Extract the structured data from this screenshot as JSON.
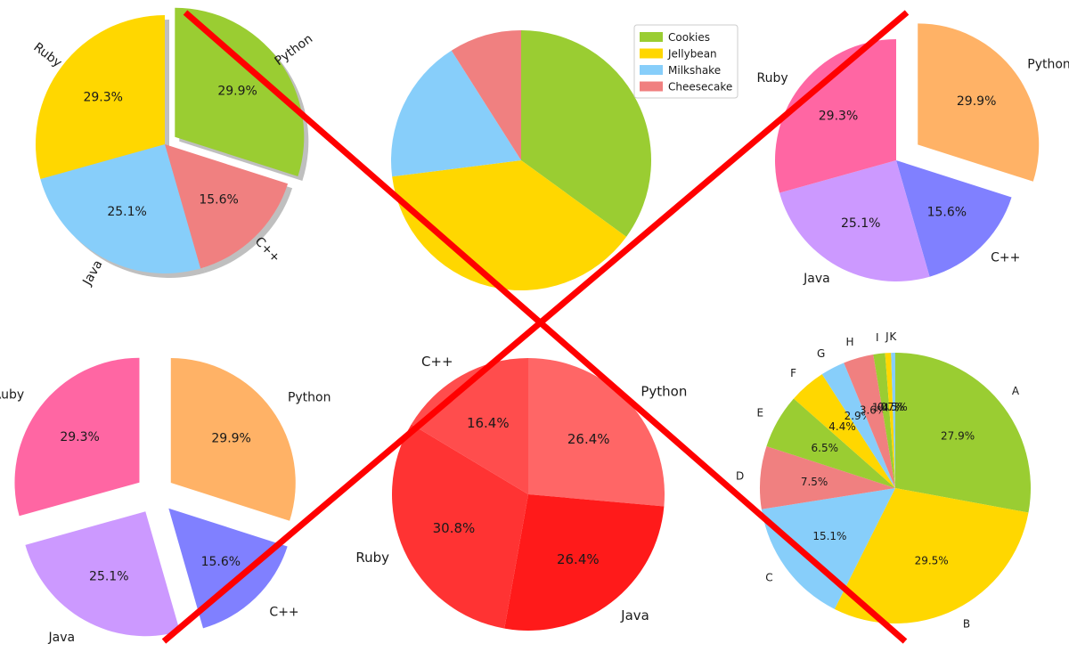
{
  "chart_data": [
    {
      "type": "pie",
      "categories": [
        "Python",
        "C++",
        "Java",
        "Ruby"
      ],
      "values": [
        29.9,
        15.6,
        25.1,
        29.3
      ],
      "value_labels": [
        "29.9%",
        "15.6%",
        "25.1%",
        "29.3%"
      ],
      "colors": [
        "#9acd32",
        "#f08080",
        "#87cefa",
        "#ffd700"
      ],
      "explode": [
        "Python"
      ],
      "shadow": true,
      "rotated_labels": true
    },
    {
      "type": "pie",
      "categories": [
        "Cookies",
        "Jellybean",
        "Milkshake",
        "Cheesecake"
      ],
      "values": [
        35,
        38,
        18,
        9
      ],
      "colors": [
        "#9acd32",
        "#ffd700",
        "#87cefa",
        "#f08080"
      ],
      "legend": "top-right"
    },
    {
      "type": "pie",
      "categories": [
        "Python",
        "C++",
        "Java",
        "Ruby"
      ],
      "values": [
        29.9,
        15.6,
        25.1,
        29.3
      ],
      "value_labels": [
        "29.9%",
        "15.6%",
        "25.1%",
        "29.3%"
      ],
      "colors": [
        "#ffb266",
        "#8080ff",
        "#cc99ff",
        "#ff66a3"
      ],
      "explode": [
        "Python"
      ]
    },
    {
      "type": "pie",
      "categories": [
        "Python",
        "C++",
        "Java",
        "Ruby"
      ],
      "values": [
        29.9,
        15.6,
        25.1,
        29.3
      ],
      "value_labels": [
        "29.9%",
        "15.6%",
        "25.1%",
        "29.3%"
      ],
      "colors": [
        "#ffb266",
        "#8080ff",
        "#cc99ff",
        "#ff66a3"
      ],
      "explode": [
        "Python",
        "C++",
        "Java",
        "Ruby"
      ]
    },
    {
      "type": "pie",
      "categories": [
        "Python",
        "Java",
        "Ruby",
        "C++"
      ],
      "values": [
        26.4,
        26.4,
        30.8,
        16.4
      ],
      "value_labels": [
        "26.4%",
        "26.4%",
        "30.8%",
        "16.4%"
      ],
      "colors": [
        "#ff6666",
        "#ff1a1a",
        "#ff3333",
        "#ff4d4d"
      ]
    },
    {
      "type": "pie",
      "categories": [
        "A",
        "B",
        "C",
        "D",
        "E",
        "F",
        "G",
        "H",
        "I",
        "J",
        "K"
      ],
      "values": [
        27.9,
        29.5,
        15.1,
        7.5,
        6.5,
        4.4,
        2.9,
        3.6,
        1.4,
        0.7,
        0.5
      ],
      "value_labels": [
        "27.9%",
        "29.5%",
        "15.1%",
        "7.5%",
        "6.5%",
        "4.4%",
        "2.9%",
        "3.6%",
        "1.4%",
        "0.7%",
        "0.5%"
      ],
      "colors": [
        "#9acd32",
        "#ffd700",
        "#87cefa",
        "#f08080",
        "#9acd32",
        "#ffd700",
        "#87cefa",
        "#f08080",
        "#9acd32",
        "#ffd700",
        "#87cefa"
      ]
    }
  ],
  "overlay": {
    "cross_color": "#ff0000"
  }
}
